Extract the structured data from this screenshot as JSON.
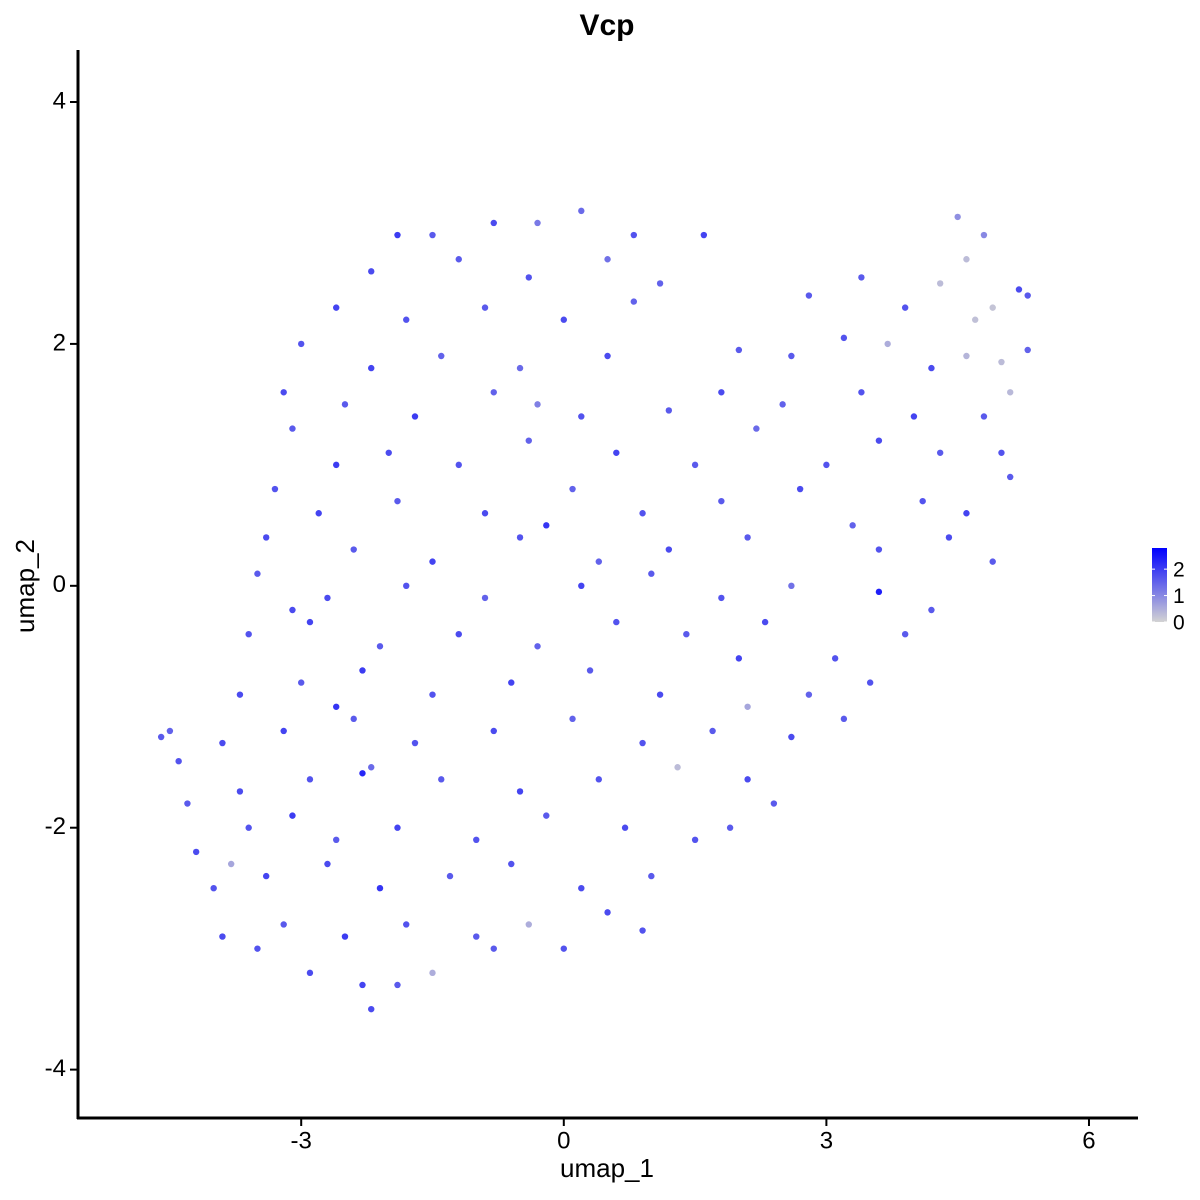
{
  "chart_data": {
    "type": "scatter",
    "title": "Vcp",
    "x_label": "umap_1",
    "y_label": "umap_2",
    "x": [
      -1.5,
      -0.8,
      0.2,
      -0.3,
      -1.9,
      0.8,
      1.6,
      -2.2,
      -1.2,
      -0.4,
      0.5,
      1.1,
      3.4,
      4.5,
      4.6,
      5.2,
      4.8,
      -2.6,
      -1.8,
      -0.9,
      0.0,
      0.8,
      2.8,
      3.9,
      4.3,
      4.9,
      5.3,
      4.7,
      -3.0,
      -2.2,
      -1.4,
      -0.5,
      0.5,
      2.0,
      3.2,
      3.7,
      4.2,
      5.0,
      5.3,
      4.6,
      5.1,
      2.6,
      -3.2,
      -2.5,
      -1.7,
      -0.8,
      0.2,
      1.2,
      1.8,
      2.5,
      3.4,
      4.0,
      4.8,
      -0.3,
      -3.1,
      -2.0,
      -1.2,
      -0.4,
      0.6,
      1.5,
      2.2,
      3.0,
      3.6,
      4.3,
      5.0,
      -2.6,
      -3.3,
      -2.8,
      -1.9,
      -0.9,
      0.1,
      0.9,
      1.8,
      2.7,
      3.3,
      4.1,
      5.1,
      4.6,
      -3.4,
      -2.4,
      -1.5,
      -0.5,
      0.4,
      1.2,
      2.1,
      3.6,
      4.4,
      4.9,
      -0.2,
      -3.5,
      -2.7,
      -1.8,
      -0.9,
      0.2,
      1.0,
      1.8,
      2.6,
      3.6,
      4.2,
      -3.1,
      -3.6,
      -2.9,
      -2.1,
      -1.2,
      -0.3,
      0.6,
      1.4,
      2.3,
      3.1,
      3.9,
      -3.7,
      -3.0,
      -2.3,
      -1.5,
      -0.6,
      0.3,
      1.1,
      2.0,
      2.8,
      3.5,
      -2.6,
      -4.6,
      -4.5,
      -4.4,
      -3.9,
      -3.2,
      -2.4,
      -1.7,
      -0.8,
      0.1,
      0.9,
      1.7,
      2.6,
      3.2,
      2.1,
      -4.3,
      -3.7,
      -2.9,
      -2.3,
      -1.4,
      -0.5,
      0.4,
      1.3,
      2.1,
      2.4,
      -2.2,
      -4.2,
      -3.6,
      -3.1,
      -2.6,
      -1.9,
      -1.0,
      -0.2,
      0.7,
      1.5,
      1.9,
      -4.0,
      -3.4,
      -2.7,
      -2.1,
      -1.3,
      -0.6,
      0.2,
      1.0,
      -3.8,
      -3.9,
      -3.2,
      -2.5,
      -1.8,
      -1.0,
      -0.4,
      0.5,
      0.9,
      -3.5,
      -2.9,
      -2.3,
      -1.5,
      -0.8,
      0.0,
      -2.2,
      -1.9
    ],
    "values": [
      2.9,
      3.0,
      3.1,
      3.0,
      2.9,
      2.9,
      2.9,
      2.6,
      2.7,
      2.55,
      2.7,
      2.5,
      2.55,
      3.05,
      2.7,
      2.45,
      2.9,
      2.3,
      2.2,
      2.3,
      2.2,
      2.35,
      2.4,
      2.3,
      2.5,
      2.3,
      2.4,
      2.2,
      2.0,
      1.8,
      1.9,
      1.8,
      1.9,
      1.95,
      2.05,
      2.0,
      1.8,
      1.85,
      1.95,
      1.9,
      1.6,
      1.9,
      1.6,
      1.5,
      1.4,
      1.6,
      1.4,
      1.45,
      1.6,
      1.5,
      1.6,
      1.4,
      1.4,
      1.5,
      1.3,
      1.1,
      1.0,
      1.2,
      1.1,
      1.0,
      1.3,
      1.0,
      1.2,
      1.1,
      1.1,
      1.0,
      0.8,
      0.6,
      0.7,
      0.6,
      0.8,
      0.6,
      0.7,
      0.8,
      0.5,
      0.7,
      0.9,
      0.6,
      0.4,
      0.3,
      0.2,
      0.4,
      0.2,
      0.3,
      0.4,
      0.3,
      0.4,
      0.2,
      0.5,
      0.1,
      -0.1,
      0.0,
      -0.1,
      0.0,
      0.1,
      -0.1,
      0.0,
      -0.05,
      -0.2,
      -0.2,
      -0.4,
      -0.3,
      -0.5,
      -0.4,
      -0.5,
      -0.3,
      -0.4,
      -0.3,
      -0.6,
      -0.4,
      -0.9,
      -0.8,
      -0.7,
      -0.9,
      -0.8,
      -0.7,
      -0.9,
      -0.6,
      -0.9,
      -0.8,
      -1.0,
      -1.25,
      -1.2,
      -1.45,
      -1.3,
      -1.2,
      -1.1,
      -1.3,
      -1.2,
      -1.1,
      -1.3,
      -1.2,
      -1.25,
      -1.1,
      -1.0,
      -1.8,
      -1.7,
      -1.6,
      -1.55,
      -1.6,
      -1.7,
      -1.6,
      -1.5,
      -1.6,
      -1.8,
      -1.5,
      -2.2,
      -2.0,
      -1.9,
      -2.1,
      -2.0,
      -2.1,
      -1.9,
      -2.0,
      -2.1,
      -2.0,
      -2.5,
      -2.4,
      -2.3,
      -2.5,
      -2.4,
      -2.3,
      -2.5,
      -2.4,
      -2.3,
      -2.9,
      -2.8,
      -2.9,
      -2.8,
      -2.9,
      -2.8,
      -2.7,
      -2.85,
      -3.0,
      -3.2,
      -3.3,
      -3.2,
      -3.0,
      -3.0,
      -3.5,
      -3.3
    ],
    "expression": [
      1.6,
      1.8,
      1.4,
      1.2,
      2.0,
      1.7,
      1.9,
      1.8,
      1.6,
      1.7,
      1.3,
      1.5,
      1.6,
      0.9,
      0.3,
      1.8,
      1.0,
      1.9,
      1.7,
      1.6,
      1.8,
      1.5,
      1.6,
      1.7,
      0.3,
      0.2,
      1.6,
      0.25,
      1.7,
      1.9,
      1.5,
      1.4,
      1.8,
      1.6,
      1.7,
      0.5,
      1.8,
      0.3,
      1.5,
      0.4,
      0.35,
      1.6,
      1.8,
      1.6,
      2.0,
      1.5,
      1.7,
      1.6,
      1.8,
      1.5,
      1.7,
      1.9,
      1.6,
      1.1,
      1.6,
      1.8,
      1.7,
      1.5,
      1.9,
      1.6,
      1.4,
      1.7,
      1.8,
      1.6,
      1.7,
      2.0,
      1.7,
      1.9,
      1.6,
      1.8,
      1.5,
      1.7,
      1.6,
      1.8,
      1.5,
      1.7,
      1.6,
      1.9,
      1.8,
      1.6,
      1.9,
      1.7,
      1.5,
      1.8,
      1.6,
      1.7,
      1.8,
      1.6,
      2.1,
      1.6,
      1.8,
      1.7,
      1.5,
      1.9,
      1.6,
      1.7,
      1.3,
      2.4,
      1.6,
      1.8,
      1.7,
      1.9,
      1.6,
      1.8,
      1.5,
      1.7,
      1.6,
      1.8,
      1.7,
      1.6,
      1.8,
      1.6,
      2.0,
      1.7,
      1.9,
      1.6,
      1.8,
      1.9,
      1.5,
      1.7,
      2.1,
      1.6,
      1.5,
      1.7,
      1.8,
      1.9,
      1.6,
      1.7,
      1.8,
      1.5,
      1.7,
      1.6,
      1.8,
      1.6,
      0.6,
      1.6,
      1.8,
      1.7,
      2.3,
      1.6,
      1.9,
      1.7,
      0.3,
      1.8,
      1.6,
      1.4,
      1.8,
      1.7,
      2.0,
      1.6,
      1.9,
      1.7,
      1.6,
      1.8,
      1.7,
      1.6,
      1.7,
      1.9,
      1.8,
      2.1,
      1.6,
      1.7,
      1.8,
      1.6,
      0.6,
      1.8,
      1.6,
      2.0,
      1.7,
      1.6,
      0.5,
      1.8,
      1.7,
      1.7,
      1.8,
      1.9,
      0.5,
      1.6,
      1.7,
      1.8,
      1.6
    ],
    "colors": {
      "low": "#d3d3d3",
      "high": "#0000ff"
    },
    "colorlim": [
      0,
      2.8
    ],
    "colorticks": [
      0,
      1,
      2
    ],
    "xlim": [
      -5.55,
      6.56
    ],
    "xticks": [
      -3,
      0,
      3,
      6
    ],
    "ylim": [
      -4.4,
      4.43
    ],
    "yticks": [
      -4,
      -2,
      0,
      2,
      4
    ],
    "grid": false
  }
}
